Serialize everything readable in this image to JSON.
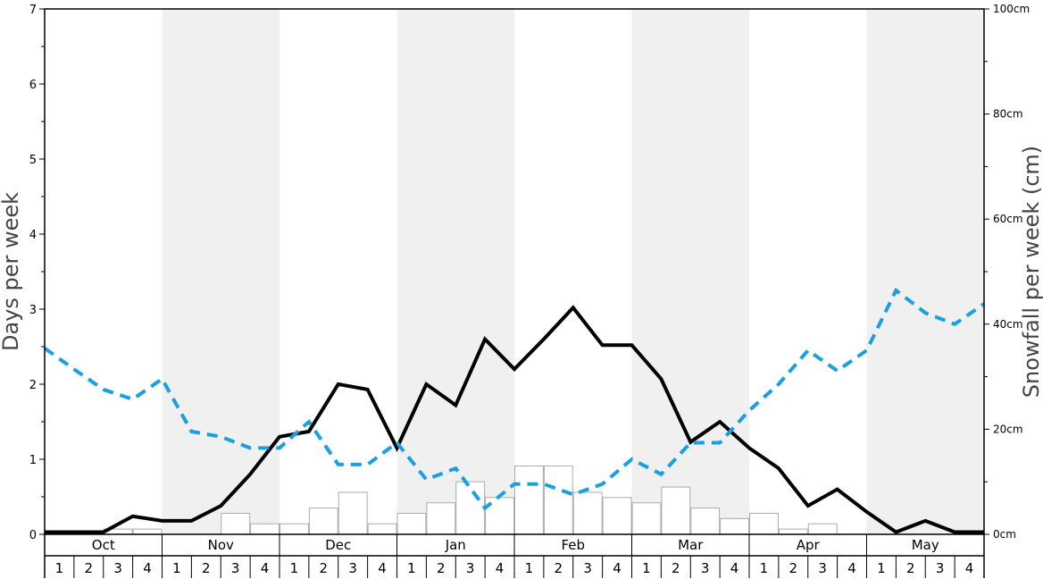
{
  "chart_data": {
    "type": "bar",
    "ylabel_left": "Days per week",
    "ylabel_right": "Snowfall per week (cm)",
    "left_axis": {
      "ylim": [
        0,
        7
      ],
      "ticks": [
        "0",
        "1",
        "2",
        "3",
        "4",
        "5",
        "6",
        "7"
      ]
    },
    "right_axis": {
      "ylim": [
        0,
        100
      ],
      "ticks": [
        "0cm",
        "20cm",
        "40cm",
        "60cm",
        "80cm",
        "100cm"
      ]
    },
    "months": [
      "Oct",
      "Nov",
      "Dec",
      "Jan",
      "Feb",
      "Mar",
      "Apr",
      "May"
    ],
    "weeks": [
      "1",
      "2",
      "3",
      "4"
    ],
    "shaded_months": [
      "Nov",
      "Jan",
      "Mar",
      "May"
    ],
    "series": [
      {
        "axis": "right",
        "style": "bar",
        "color": "#ffffff",
        "stroke": "#aaaaaa",
        "values": [
          0,
          0,
          1,
          1,
          0,
          0,
          4,
          2,
          2,
          5,
          8,
          2,
          4,
          6,
          10,
          7,
          13,
          13,
          8,
          7,
          6,
          9,
          5,
          3,
          4,
          1,
          2,
          0,
          0,
          0,
          0,
          0
        ]
      },
      {
        "axis": "left",
        "style": "solid",
        "color": "#000000",
        "values": [
          0.03,
          0.03,
          0.03,
          0.24,
          0.18,
          0.18,
          0.38,
          0.8,
          1.3,
          1.37,
          2.0,
          1.93,
          1.15,
          2.0,
          1.72,
          2.6,
          2.2,
          2.6,
          3.02,
          2.52,
          2.52,
          2.07,
          1.23,
          1.5,
          1.15,
          0.88,
          0.38,
          0.6,
          0.3,
          0.03,
          0.18,
          0.03,
          0.03
        ]
      },
      {
        "axis": "left",
        "style": "dashed",
        "color": "#1a9fe3",
        "values": [
          2.48,
          2.2,
          1.93,
          1.8,
          2.07,
          1.37,
          1.3,
          1.15,
          1.15,
          1.5,
          0.93,
          0.93,
          1.22,
          0.73,
          0.88,
          0.35,
          0.67,
          0.67,
          0.53,
          0.67,
          1.0,
          0.8,
          1.22,
          1.22,
          1.65,
          2.0,
          2.45,
          2.18,
          2.45,
          3.25,
          2.95,
          2.8,
          3.07
        ]
      }
    ]
  }
}
